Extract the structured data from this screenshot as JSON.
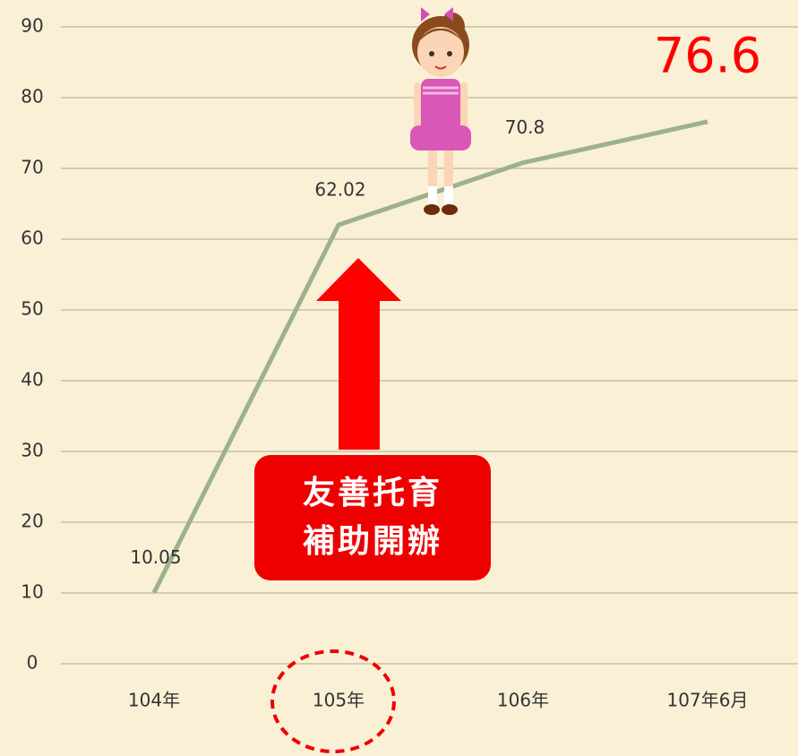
{
  "chart_data": {
    "type": "line",
    "categories": [
      "104年",
      "105年",
      "106年",
      "107年6月"
    ],
    "values": [
      10.05,
      62.02,
      70.8,
      76.6
    ],
    "color": "#9db28a",
    "ylim": [
      0,
      90
    ],
    "yticks": [
      0,
      10,
      20,
      30,
      40,
      50,
      60,
      70,
      80,
      90
    ],
    "grid": true,
    "annotation": [
      "友善托育",
      "補助開辦"
    ]
  }
}
